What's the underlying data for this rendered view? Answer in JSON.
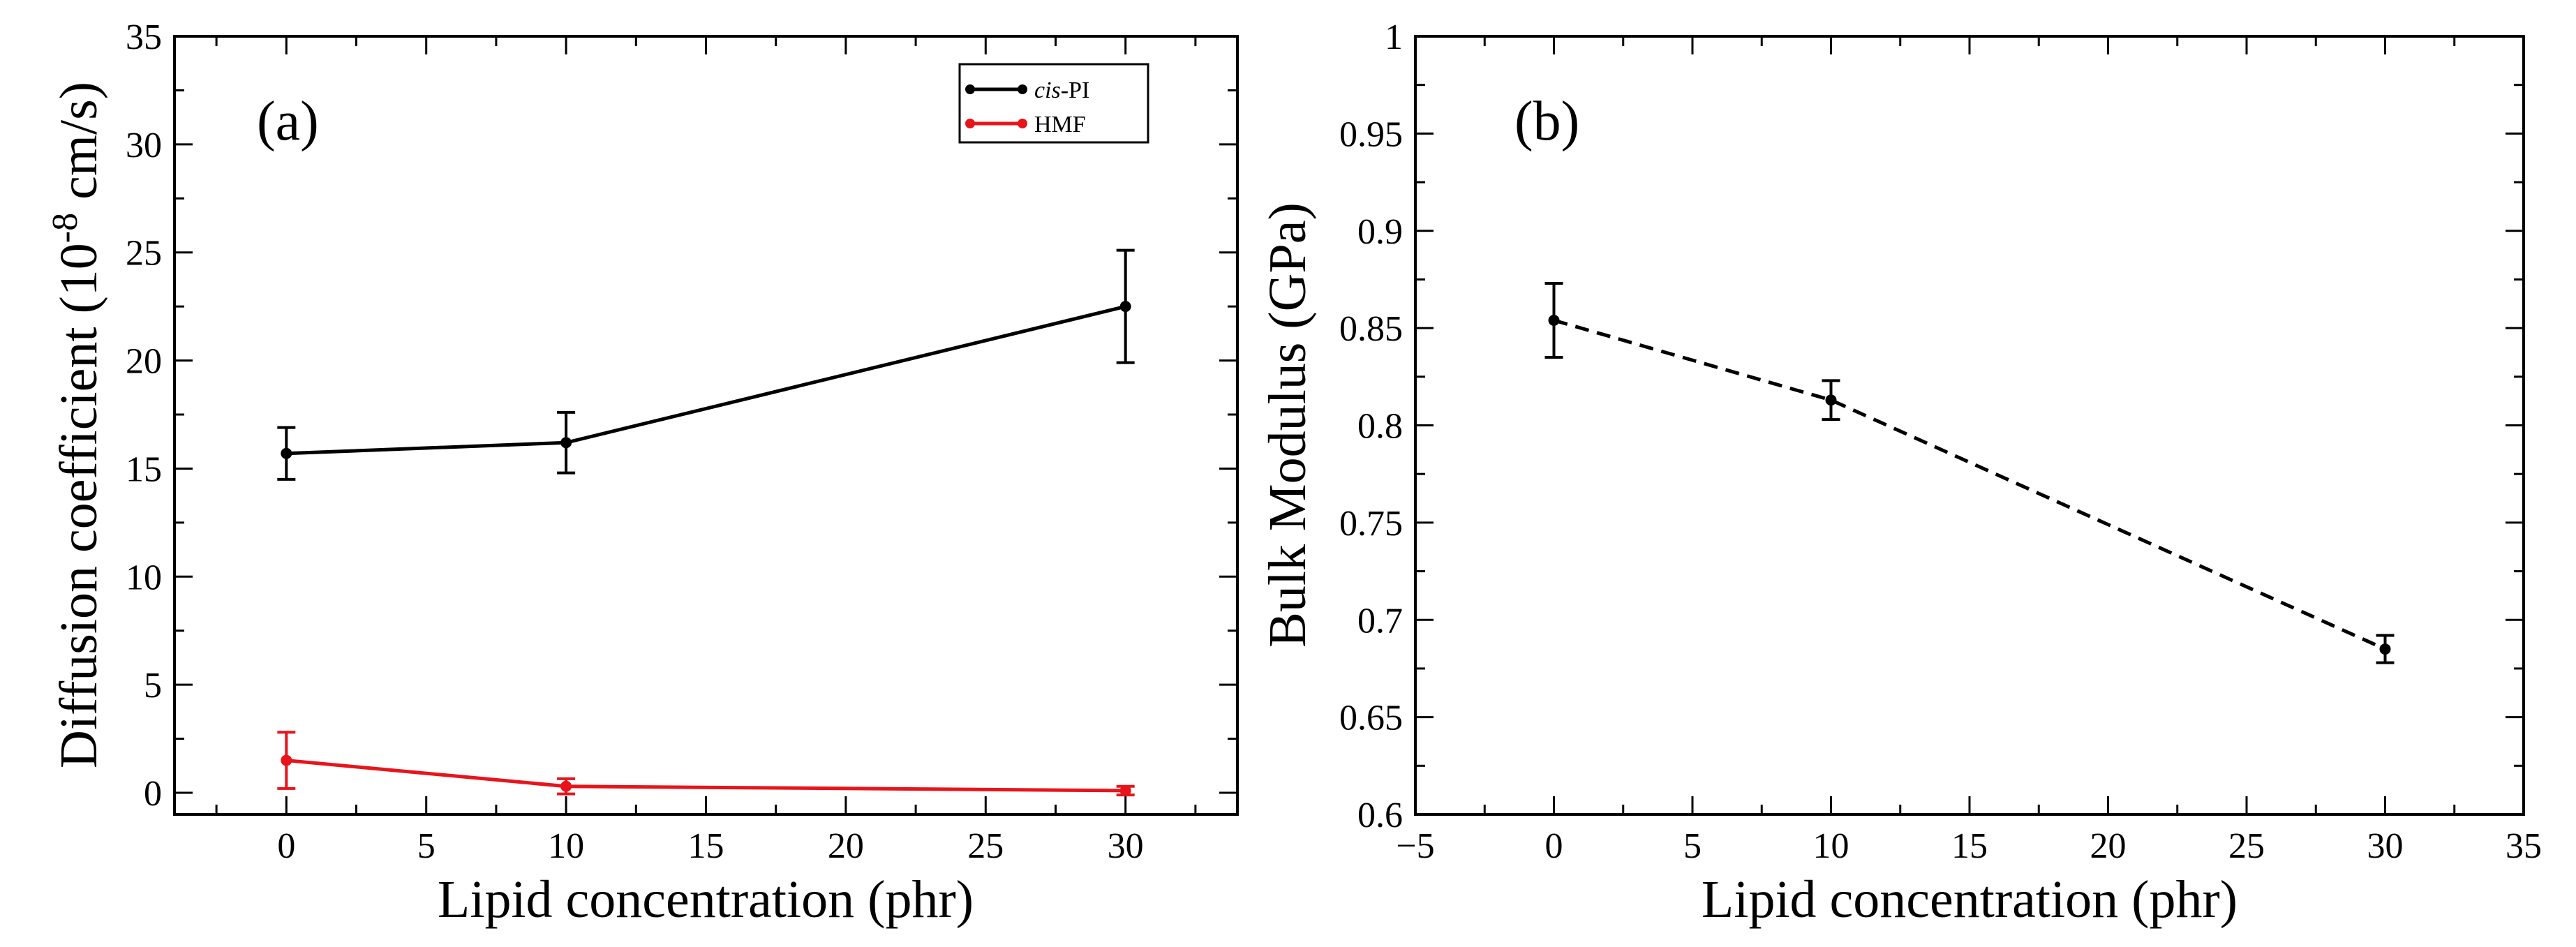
{
  "chart_data": [
    {
      "type": "line",
      "panel_label": "(a)",
      "title": "",
      "xlabel": "Lipid concentration (phr)",
      "ylabel_main": "Diffusion coefficient (10",
      "ylabel_sup": "-8",
      "ylabel_tail": " cm/s)",
      "xlim": [
        -4,
        34
      ],
      "ylim": [
        -1,
        35
      ],
      "xticks": [
        0,
        5,
        10,
        15,
        20,
        25,
        30
      ],
      "yticks": [
        0,
        5,
        10,
        15,
        20,
        25,
        30,
        35
      ],
      "legend_position": "top-right",
      "series": [
        {
          "name_italic": "cis",
          "name_rest": "-PI",
          "color": "#000000",
          "dashed": false,
          "x": [
            0,
            10,
            30
          ],
          "y": [
            15.7,
            16.2,
            22.5
          ],
          "err": [
            1.2,
            1.4,
            2.6
          ]
        },
        {
          "name_italic": "",
          "name_rest": "HMF",
          "color": "#e8141b",
          "dashed": false,
          "x": [
            0,
            10,
            30
          ],
          "y": [
            1.5,
            0.3,
            0.1
          ],
          "err": [
            1.3,
            0.35,
            0.2
          ]
        }
      ]
    },
    {
      "type": "line",
      "panel_label": "(b)",
      "title": "",
      "xlabel": "Lipid concentration (phr)",
      "ylabel_main": "Bulk Modulus (GPa)",
      "ylabel_sup": "",
      "ylabel_tail": "",
      "xlim": [
        -5,
        35
      ],
      "ylim": [
        0.6,
        1.0
      ],
      "xticks": [
        -5,
        0,
        5,
        10,
        15,
        20,
        25,
        30,
        35
      ],
      "xtick_labels": [
        "−5",
        "0",
        "5",
        "10",
        "15",
        "20",
        "25",
        "30",
        "35"
      ],
      "yticks": [
        0.6,
        0.65,
        0.7,
        0.75,
        0.8,
        0.85,
        0.9,
        0.95,
        1.0
      ],
      "ytick_labels": [
        "0.6",
        "0.65",
        "0.7",
        "0.75",
        "0.8",
        "0.85",
        "0.9",
        "0.95",
        "1"
      ],
      "legend_position": "none",
      "series": [
        {
          "name_italic": "",
          "name_rest": "",
          "color": "#000000",
          "dashed": true,
          "x": [
            0,
            10,
            30
          ],
          "y": [
            0.854,
            0.813,
            0.685
          ],
          "err": [
            0.019,
            0.01,
            0.007
          ]
        }
      ]
    }
  ]
}
